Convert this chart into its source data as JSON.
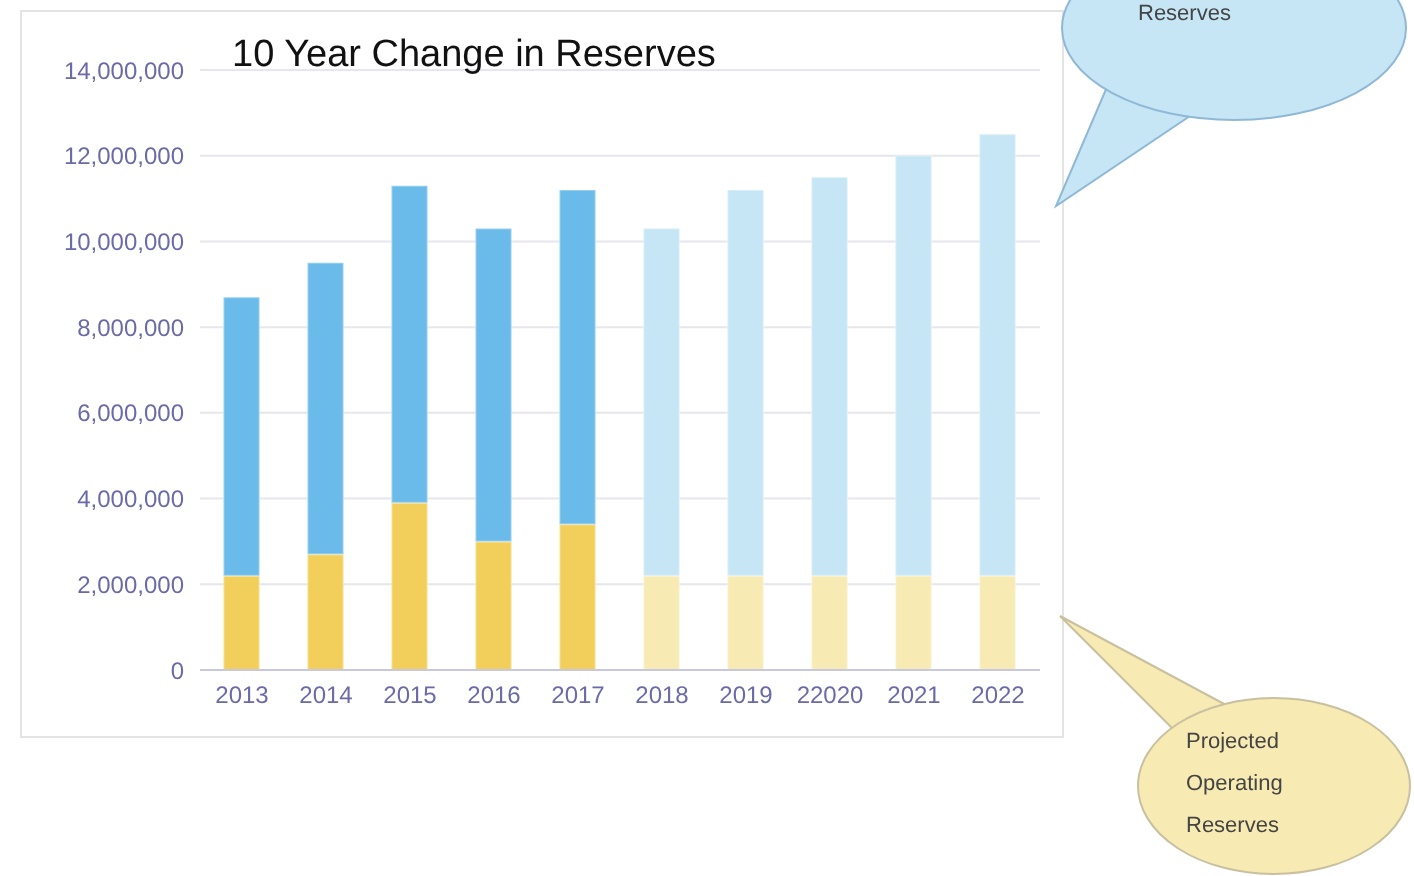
{
  "chart_data": {
    "type": "bar",
    "title": "10 Year Change in Reserves",
    "stacked": true,
    "grid": "y",
    "categories": [
      "2013",
      "2014",
      "2015",
      "2016",
      "2017",
      "2018",
      "2019",
      "22020",
      "2021",
      "2022"
    ],
    "series": [
      {
        "colors": [
          "#f2cf5b",
          "#f2cf5b",
          "#f2cf5b",
          "#f2cf5b",
          "#f2cf5b",
          "#f7eab3",
          "#f7eab3",
          "#f7eab3",
          "#f7eab3",
          "#f7eab3"
        ],
        "values": [
          2200000,
          2700000,
          3900000,
          3000000,
          3400000,
          2200000,
          2200000,
          2200000,
          2200000,
          2200000
        ]
      },
      {
        "colors": [
          "#6bbbea",
          "#6bbbea",
          "#6bbbea",
          "#6bbbea",
          "#6bbbea",
          "#c6e6f5",
          "#c6e6f5",
          "#c6e6f5",
          "#c6e6f5",
          "#c6e6f5"
        ],
        "values": [
          6500000,
          6800000,
          7400000,
          7300000,
          7800000,
          8100000,
          9000000,
          9300000,
          9800000,
          10300000
        ]
      }
    ],
    "ylim": [
      0,
      14000000
    ],
    "yticks": [
      {
        "value": 0,
        "label": "0"
      },
      {
        "value": 2000000,
        "label": "2,000,000"
      },
      {
        "value": 4000000,
        "label": "4,000,000"
      },
      {
        "value": 6000000,
        "label": "6,000,000"
      },
      {
        "value": 8000000,
        "label": "8,000,000"
      },
      {
        "value": 10000000,
        "label": "10,000,000"
      },
      {
        "value": 12000000,
        "label": "12,000,000"
      },
      {
        "value": 14000000,
        "label": "14,000,000"
      }
    ],
    "annotations": [
      "Reserves",
      "Projected Operating Reserves"
    ]
  }
}
